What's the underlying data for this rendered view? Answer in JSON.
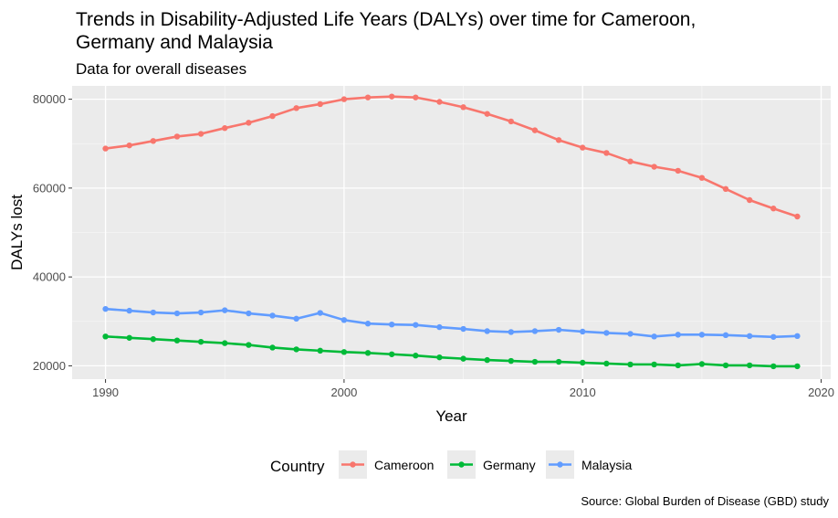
{
  "chart_data": {
    "type": "line",
    "title": "Trends in Disability-Adjusted Life Years (DALYs) over time for Cameroon, Germany and Malaysia",
    "subtitle": "Data for overall diseases",
    "caption": "Source: Global Burden of Disease (GBD) study",
    "xlabel": "Year",
    "ylabel": "DALYs lost",
    "xlim": [
      1988.6,
      2020.4
    ],
    "ylim": [
      17000,
      83000
    ],
    "xticks": [
      1990,
      2000,
      2010,
      2020
    ],
    "yticks": [
      20000,
      40000,
      60000,
      80000
    ],
    "grid": true,
    "legend_title": "Country",
    "legend_position": "bottom",
    "x": [
      1990,
      1991,
      1992,
      1993,
      1994,
      1995,
      1996,
      1997,
      1998,
      1999,
      2000,
      2001,
      2002,
      2003,
      2004,
      2005,
      2006,
      2007,
      2008,
      2009,
      2010,
      2011,
      2012,
      2013,
      2014,
      2015,
      2016,
      2017,
      2018,
      2019
    ],
    "series": [
      {
        "name": "Cameroon",
        "color": "#F8766D",
        "values": [
          68900,
          69600,
          70600,
          71600,
          72200,
          73500,
          74700,
          76200,
          78000,
          78900,
          80000,
          80400,
          80600,
          80400,
          79400,
          78200,
          76700,
          75000,
          73000,
          70800,
          69100,
          67900,
          66000,
          64800,
          63900,
          62300,
          59800,
          57300,
          55400,
          53600
        ]
      },
      {
        "name": "Germany",
        "color": "#00BA38",
        "values": [
          26600,
          26300,
          26000,
          25700,
          25400,
          25100,
          24700,
          24100,
          23700,
          23400,
          23100,
          22900,
          22600,
          22300,
          21900,
          21600,
          21300,
          21100,
          20900,
          20900,
          20700,
          20500,
          20300,
          20300,
          20100,
          20400,
          20100,
          20100,
          19900,
          19900
        ]
      },
      {
        "name": "Malaysia",
        "color": "#619CFF",
        "values": [
          32800,
          32400,
          32000,
          31800,
          32000,
          32500,
          31800,
          31300,
          30600,
          31900,
          30300,
          29500,
          29300,
          29200,
          28700,
          28300,
          27800,
          27600,
          27800,
          28100,
          27700,
          27400,
          27200,
          26600,
          27000,
          27000,
          26900,
          26700,
          26500,
          26700
        ]
      }
    ]
  }
}
